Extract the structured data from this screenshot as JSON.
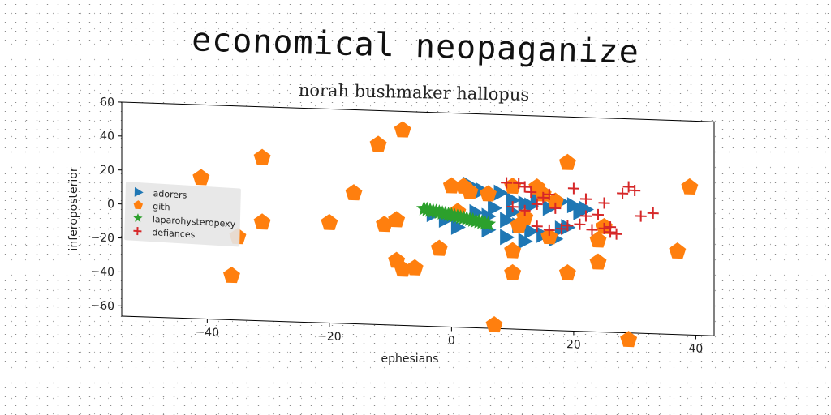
{
  "title": "economical neopaganize",
  "chart_data": {
    "type": "scatter",
    "title": "norah bushmaker hallopus",
    "xlabel": "ephesians",
    "ylabel": "inferoposterior",
    "xlim": [
      -54,
      43
    ],
    "ylim": [
      -66,
      60
    ],
    "xticks": [
      -40,
      -20,
      0,
      20,
      40
    ],
    "yticks": [
      -60,
      -40,
      -20,
      0,
      20,
      40,
      60
    ],
    "xtick_labels": [
      "−40",
      "−20",
      "0",
      "20",
      "40"
    ],
    "ytick_labels": [
      "−60",
      "−40",
      "−20",
      "0",
      "20",
      "40",
      "60"
    ],
    "grid": false,
    "legend_position": "center-left",
    "series": [
      {
        "name": "adorers",
        "marker": "triangle-right",
        "color": "#1f77b4",
        "x": [
          3,
          5,
          8,
          10,
          12,
          14,
          16,
          18,
          20,
          22,
          4,
          6,
          9,
          11,
          13,
          15,
          17,
          19,
          -3,
          -1,
          1,
          6,
          9,
          12,
          15,
          18,
          21,
          7,
          10,
          13
        ],
        "y": [
          18,
          15,
          14,
          10,
          8,
          12,
          6,
          10,
          8,
          6,
          2,
          0,
          -2,
          -5,
          -8,
          -10,
          -12,
          -5,
          0,
          -3,
          -7,
          -8,
          -12,
          -14,
          -10,
          -6,
          4,
          5,
          3,
          7
        ]
      },
      {
        "name": "gith",
        "marker": "pentagon",
        "color": "#ff7f0e",
        "x": [
          -8,
          -12,
          -31,
          -41,
          -16,
          -20,
          -31,
          -35,
          -36,
          -11,
          -9,
          -9,
          -8,
          -6,
          0,
          2,
          1,
          3,
          6,
          10,
          10,
          10,
          12,
          14,
          15,
          16,
          19,
          19,
          24,
          24,
          25,
          37,
          39,
          29,
          7,
          -2,
          11,
          17
        ],
        "y": [
          49,
          40,
          30,
          17,
          11,
          -7,
          -8,
          -17,
          -40,
          -7,
          -4,
          -28,
          -33,
          -32,
          17,
          17,
          2,
          14,
          13,
          18,
          -20,
          -33,
          0,
          18,
          14,
          -11,
          -32,
          33,
          -25,
          -12,
          -4,
          -17,
          21,
          -70,
          -64,
          -20,
          -5,
          10
        ]
      },
      {
        "name": "laparohysteropexy",
        "marker": "star",
        "color": "#2ca02c",
        "x": [
          -4.5,
          -4,
          -3.5,
          -3,
          -2.5,
          -2,
          -1.5,
          -1,
          -0.5,
          0,
          0.5,
          1,
          1.5,
          2,
          2.5,
          3,
          3.5,
          4,
          4.5,
          5,
          5.5,
          6
        ],
        "y": [
          3,
          2.6,
          2.2,
          1.9,
          1.6,
          1.2,
          0.8,
          0.5,
          0.1,
          -0.2,
          -0.6,
          -1,
          -1.3,
          -1.7,
          -2,
          -2.4,
          -2.8,
          -3.1,
          -3.5,
          -3.9,
          -4.3,
          -4.7
        ]
      },
      {
        "name": "defiances",
        "marker": "plus",
        "color": "#d62728",
        "x": [
          9,
          11,
          12,
          13,
          15,
          16,
          17,
          14,
          12,
          10,
          20,
          22,
          24,
          26,
          28,
          30,
          31,
          33,
          21,
          23,
          25,
          27,
          29,
          18,
          19,
          16,
          14,
          22,
          25,
          26
        ],
        "y": [
          20,
          20,
          18,
          15,
          12,
          14,
          6,
          8,
          4,
          6,
          18,
          2,
          3,
          -4,
          16,
          18,
          3,
          5,
          -3,
          -6,
          -5,
          -8,
          20,
          -6,
          -4,
          -7,
          -5,
          12,
          10,
          -7
        ]
      }
    ]
  }
}
